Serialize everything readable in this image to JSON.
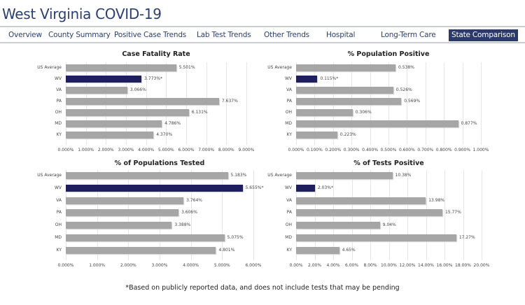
{
  "header": {
    "title": "West Virginia COVID-19"
  },
  "nav": {
    "tabs": [
      {
        "label": "Overview",
        "active": false
      },
      {
        "label": "County Summary",
        "active": false
      },
      {
        "label": "Positive Case Trends",
        "active": false
      },
      {
        "label": "Lab Test Trends",
        "active": false
      },
      {
        "label": "Other Trends",
        "active": false
      },
      {
        "label": "Hospital",
        "active": false
      },
      {
        "label": "Long-Term Care",
        "active": false
      },
      {
        "label": "State Comparison",
        "active": true
      }
    ]
  },
  "colors": {
    "bar": "#a6a6a6",
    "highlight": "#1f1f5e",
    "accent": "#2b3a6b"
  },
  "chart_data": [
    {
      "type": "bar",
      "orientation": "horizontal",
      "title": "Case Fatality Rate",
      "categories": [
        "US Average",
        "WV",
        "VA",
        "PA",
        "OH",
        "MD",
        "KY"
      ],
      "values": [
        5.501,
        3.773,
        3.066,
        7.637,
        6.131,
        4.786,
        4.37
      ],
      "labels": [
        "5.501%",
        "3.773%*",
        "3.066%",
        "7.637%",
        "6.131%",
        "4.786%",
        "4.370%"
      ],
      "highlight": "WV",
      "xlim": [
        0,
        9
      ],
      "ticks": [
        "0.000%",
        "1.000%",
        "2.000%",
        "3.000%",
        "4.000%",
        "5.000%",
        "6.000%",
        "7.000%",
        "8.000%",
        "9.000%"
      ]
    },
    {
      "type": "bar",
      "orientation": "horizontal",
      "title": "% Population Positive",
      "categories": [
        "US Average",
        "WV",
        "VA",
        "PA",
        "OH",
        "MD",
        "KY"
      ],
      "values": [
        0.538,
        0.115,
        0.526,
        0.569,
        0.306,
        0.877,
        0.223
      ],
      "labels": [
        "0.538%",
        "0.115%*",
        "0.526%",
        "0.569%",
        "0.306%",
        "0.877%",
        "0.223%"
      ],
      "highlight": "WV",
      "xlim": [
        0,
        1
      ],
      "ticks": [
        "0.000%",
        "0.100%",
        "0.200%",
        "0.300%",
        "0.400%",
        "0.500%",
        "0.600%",
        "0.700%",
        "0.800%",
        "0.900%",
        "1.000%"
      ]
    },
    {
      "type": "bar",
      "orientation": "horizontal",
      "title": "% of Populations Tested",
      "categories": [
        "US Average",
        "WV",
        "VA",
        "PA",
        "OH",
        "MD",
        "KY"
      ],
      "values": [
        5.183,
        5.655,
        3.764,
        3.606,
        3.388,
        5.075,
        4.801
      ],
      "labels": [
        "5.183%",
        "5.655%*",
        "3.764%",
        "3.606%",
        "3.388%",
        "5.075%",
        "4.801%"
      ],
      "highlight": "WV",
      "xlim": [
        0,
        6
      ],
      "ticks": [
        "0.000%",
        "1.000%",
        "2.000%",
        "3.000%",
        "4.000%",
        "5.000%",
        "6.000%"
      ]
    },
    {
      "type": "bar",
      "orientation": "horizontal",
      "title": "% of Tests Positive",
      "categories": [
        "US Average",
        "WV",
        "VA",
        "PA",
        "OH",
        "MD",
        "KY"
      ],
      "values": [
        10.38,
        2.03,
        13.98,
        15.77,
        9.04,
        17.27,
        4.65
      ],
      "labels": [
        "10.38%",
        "2.03%*",
        "13.98%",
        "15.77%",
        "9.04%",
        "17.27%",
        "4.65%"
      ],
      "highlight": "WV",
      "xlim": [
        0,
        20
      ],
      "ticks": [
        "0.00%",
        "2.00%",
        "4.00%",
        "6.00%",
        "8.00%",
        "10.00%",
        "12.00%",
        "14.00%",
        "16.00%",
        "18.00%",
        "20.00%"
      ]
    }
  ],
  "footnote": "*Based on publicly reported data, and does not include tests that may be pending"
}
